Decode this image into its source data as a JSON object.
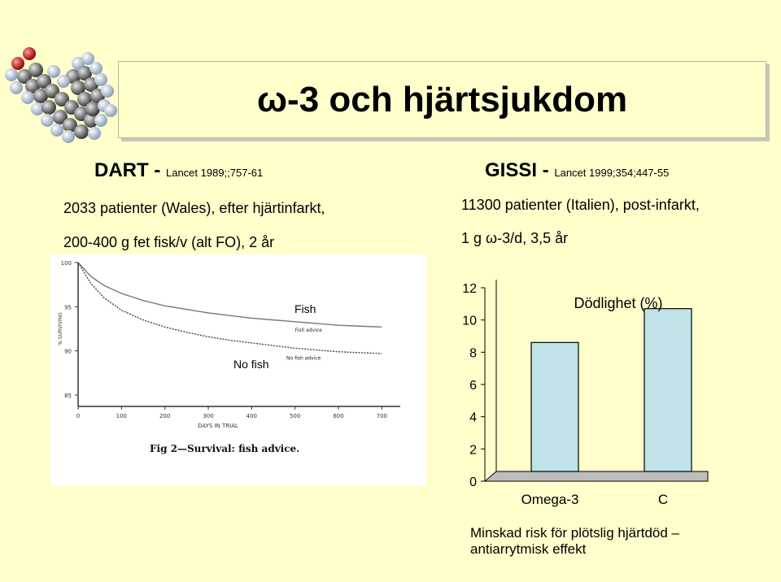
{
  "slide": {
    "title": "ω-3 och hjärtsjukdom",
    "background_color": "#ffffcc"
  },
  "dart": {
    "heading": "DART - ",
    "citation": "Lancet 1989;;757-61",
    "line1": "2033 patienter (Wales), efter hjärtinfarkt,",
    "line2": "200-400 g fet fisk/v (alt FO), 2 år"
  },
  "gissi": {
    "heading": "GISSI - ",
    "citation": "Lancet 1999;354;447-55",
    "line1": "11300 patienter (Italien), post-infarkt,",
    "line2": "1 g ω-3/d, 3,5 år"
  },
  "left_figure": {
    "fish_label": "Fish",
    "no_fish_label": "No fish",
    "fish_advice_label": "Fish advice",
    "no_fish_advice_label": "No fish advice",
    "caption": "Fig 2—Survival: fish advice."
  },
  "chart_data": [
    {
      "type": "line",
      "xlabel": "DAYS IN TRIAL",
      "ylabel": "% SURVIVING",
      "xlim": [
        0,
        720
      ],
      "ylim": [
        85,
        100
      ],
      "x_ticks": [
        "0",
        "100",
        "200",
        "300",
        "400",
        "500",
        "600",
        "700"
      ],
      "y_ticks": [
        "100",
        "95",
        "90",
        "85"
      ],
      "series": [
        {
          "name": "Fish advice",
          "x": [
            0,
            30,
            60,
            100,
            150,
            200,
            250,
            300,
            350,
            400,
            450,
            500,
            550,
            600,
            650,
            700
          ],
          "y": [
            100,
            98.4,
            97.4,
            96.5,
            95.7,
            95.1,
            94.7,
            94.3,
            94.0,
            93.7,
            93.5,
            93.3,
            93.1,
            92.9,
            92.8,
            92.7
          ]
        },
        {
          "name": "No fish advice",
          "x": [
            0,
            30,
            60,
            100,
            150,
            200,
            250,
            300,
            350,
            400,
            450,
            500,
            550,
            600,
            650,
            700
          ],
          "y": [
            100,
            97.6,
            96.0,
            94.6,
            93.5,
            92.7,
            92.1,
            91.6,
            91.2,
            90.9,
            90.6,
            90.3,
            90.1,
            89.9,
            89.8,
            89.7
          ]
        }
      ],
      "grid": false
    },
    {
      "type": "bar",
      "title": "Dödlighet (%)",
      "categories": [
        "Omega-3",
        "C"
      ],
      "values": [
        8.1,
        10.2
      ],
      "ylim": [
        0,
        12
      ],
      "y_ticks": [
        "0",
        "2",
        "4",
        "6",
        "8",
        "10",
        "12"
      ],
      "bar_color": "#bfe3e6",
      "grid": false
    }
  ],
  "right_caption": {
    "line1": "Minskad risk för plötslig hjärtdöd –",
    "line2": "antiarrytmisk effekt"
  }
}
